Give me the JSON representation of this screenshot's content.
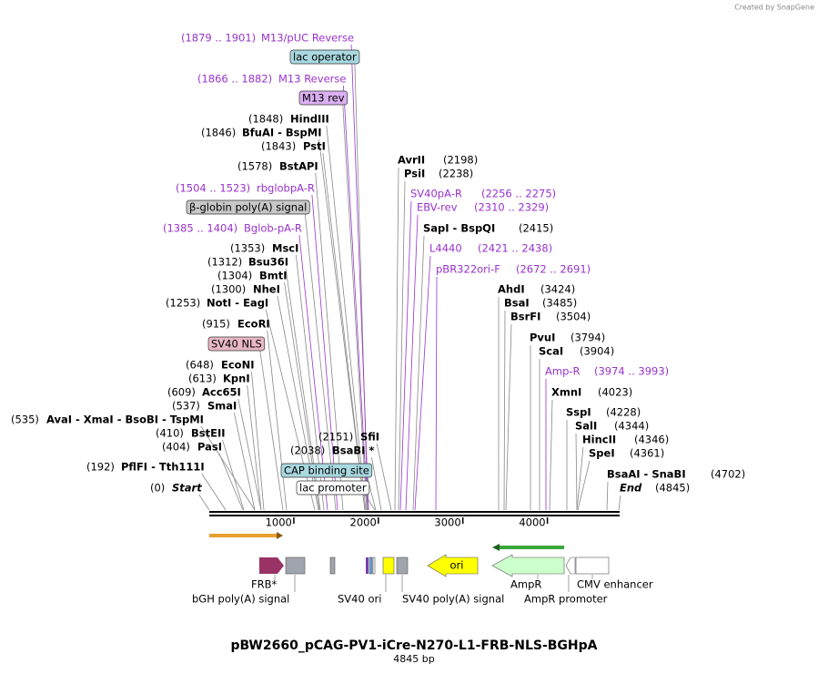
{
  "watermark": "Created by SnapGene",
  "labels": [
    {
      "position": "(1879 .. 1901)",
      "name": "M13/pUC Reverse"
    },
    {
      "name": "lac operator"
    },
    {
      "position": "(1866 .. 1882)",
      "name": "M13 Reverse"
    },
    {
      "name": "M13 rev"
    },
    {
      "position": "(1848)",
      "name": "HindIII"
    },
    {
      "position": "(1846)",
      "name": "BfuAI - BspMI"
    },
    {
      "position": "(1843)",
      "name": "PstI"
    },
    {
      "position": "(1578)",
      "name": "BstAPI"
    },
    {
      "position": "(1504 .. 1523)",
      "name": "rbglobpA-R"
    },
    {
      "name": "β-globin poly(A) signal"
    },
    {
      "position": "(1385 .. 1404)",
      "name": "Bglob-pA-R"
    },
    {
      "position": "(1353)",
      "name": "MscI"
    },
    {
      "position": "(1312)",
      "name": "Bsu36I"
    },
    {
      "position": "(1304)",
      "name": "BmtI"
    },
    {
      "position": "(1300)",
      "name": "NheI"
    },
    {
      "position": "(1253)",
      "name": "NotI - EagI"
    },
    {
      "position": "(915)",
      "name": "EcoRI"
    },
    {
      "name": "SV40 NLS"
    },
    {
      "position": "(648)",
      "name": "EcoNI"
    },
    {
      "position": "(613)",
      "name": "KpnI"
    },
    {
      "position": "(609)",
      "name": "Acc65I"
    },
    {
      "position": "(537)",
      "name": "SmaI"
    },
    {
      "position": "(535)",
      "name": "AvaI - XmaI - BsoBI - TspMI"
    },
    {
      "position": "(410)",
      "name": "BstEII"
    },
    {
      "position": "(404)",
      "name": "PasI"
    },
    {
      "position": "(192)",
      "name": "PflFI - Tth111I"
    },
    {
      "position": "(0)",
      "name": "Start"
    },
    {
      "position": "(2151)",
      "name": "SfiI"
    },
    {
      "position": "(2038)",
      "name": "BsaBI *"
    },
    {
      "name": "CAP binding site"
    },
    {
      "name": "lac promoter"
    },
    {
      "name": "AvrII",
      "position": "(2198)"
    },
    {
      "name": "PsiI",
      "position": "(2238)"
    },
    {
      "name": "SV40pA-R",
      "position": "(2256 .. 2275)"
    },
    {
      "name": "EBV-rev",
      "position": "(2310 .. 2329)"
    },
    {
      "name": "SapI - BspQI",
      "position": "(2415)"
    },
    {
      "name": "L4440",
      "position": "(2421 .. 2438)"
    },
    {
      "name": "pBR322ori-F",
      "position": "(2672 .. 2691)"
    },
    {
      "name": "AhdI",
      "position": "(3424)"
    },
    {
      "name": "BsaI",
      "position": "(3485)"
    },
    {
      "name": "BsrFI",
      "position": "(3504)"
    },
    {
      "name": "PvuI",
      "position": "(3794)"
    },
    {
      "name": "ScaI",
      "position": "(3904)"
    },
    {
      "name": "Amp-R",
      "position": "(3974 .. 3993)"
    },
    {
      "name": "XmnI",
      "position": "(4023)"
    },
    {
      "name": "SspI",
      "position": "(4228)"
    },
    {
      "name": "SalI",
      "position": "(4344)"
    },
    {
      "name": "HincII",
      "position": "(4346)"
    },
    {
      "name": "SpeI",
      "position": "(4361)"
    },
    {
      "name": "BsaAI - SnaBI",
      "position": "(4702)"
    },
    {
      "name": "End",
      "position": "(4845)"
    }
  ],
  "ruler": {
    "ticks": [
      1000,
      2000,
      3000,
      4000
    ]
  },
  "features": {
    "ori": "ori",
    "labels": [
      "FRB*",
      "bGH poly(A) signal",
      "SV40 ori",
      "SV40 poly(A) signal",
      "AmpR",
      "AmpR promoter",
      "CMV enhancer"
    ]
  },
  "footer": {
    "title": "pBW2660_pCAG-PV1-iCre-N270-L1-FRB-NLS-BGHpA",
    "length": "4845 bp"
  }
}
